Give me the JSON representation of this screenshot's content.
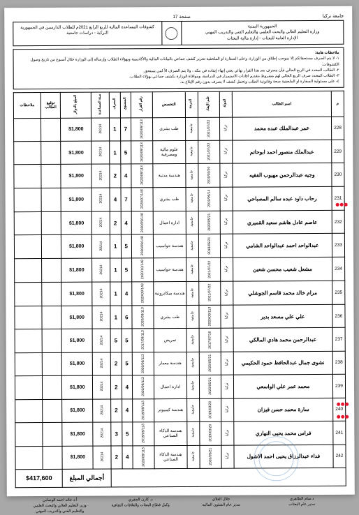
{
  "page_label_right": "جامعة تركيا",
  "page_label_center": "صفحة 17",
  "header": {
    "ministry_l1": "الجمهورية اليمنية",
    "ministry_l2": "وزارة التعليم العالي والبحث العلمي والتعليم الفني والتدريب المهني",
    "ministry_l3": "الإدارة العامة للبعثات - إدارة مالية البعثات",
    "title": "كشوفات المساعدة المالية للربع الرابع 2021م للطلاب الدارسين في الجمهورية التركية - دراسات جامعية"
  },
  "notes": {
    "heading": "ملاحظات هامة:",
    "n1": "١- لا يتم الصرف مستحقاتكم إلا بموجب إطلاق من الوزارة، وعلى السفارة او الملحقية تحرير كشف جماعي بالبيانات المالية والأكاديمية وبهؤلاء الطلاب وإرساله إلى الوزارة خلال أسبوع من تاريخ وصول الكشوفات.",
    "n2": "٢- الطالب المحدد في الربع الحالي فأن مصرف بعد هذا القرار نهائي يعني إنهاء إيفاده في بنكه ، ولا يتم الصرف الأ لمن يستحق.",
    "n3": "٣- الطلاب المحدد صرف الربع الحالي لهم مشروط بتقديم افادات الاستمرار في الدراسة، وموافاة الوزارة بكشف جماعي بهؤلاء الطلاب.",
    "n4": "٤- على مسئولية السفارة او الملحقية صحة وقانونية الطلب وتحمل كشف لا يصرف بدون رقم الإبلاغ به."
  },
  "columns": {
    "c0": "م",
    "c1": "اسم الطالب",
    "c2": "الدولة",
    "c3": "علم الإيفاد",
    "c4": "الدرجة",
    "c5": "التخصص",
    "c6": "رقم القرار",
    "c7": "المستوى",
    "c8": "المعرف",
    "c9": "سنة المساعدة",
    "c10": "المبلغ بالدولار",
    "c11": "توقيع الطالب",
    "c12": "ملاحظات"
  },
  "rows": [
    {
      "n": "228",
      "name": "عمر عبدالملك عبده محمد",
      "cty": "تركيا",
      "date": "2021/07/22",
      "deg": "جامعية",
      "spec": "طب بشري",
      "dno": "2020/09/113",
      "q1": "7",
      "q2": "1",
      "yr": "20214",
      "amt": "$1,800"
    },
    {
      "n": "229",
      "name": "عبدالملك منصور احمد ابوحاتم",
      "cty": "تركيا",
      "date": "2021/07/22",
      "deg": "جامعية",
      "spec": "علوم مالية ومصرفية",
      "dno": "2020/09/113",
      "q1": "5",
      "q2": "1",
      "yr": "20214",
      "amt": "$1,800"
    },
    {
      "n": "230",
      "name": "وجيه عبدالرحمن مهيوب الفقيه",
      "cty": "تركيا",
      "date": "2019/03/20",
      "deg": "جامعية",
      "spec": "هندسة مدنية",
      "dno": "2020/09/113",
      "q1": "4",
      "q2": "2",
      "yr": "20214",
      "amt": "$1,800"
    },
    {
      "n": "231",
      "name": "رحاب داود عبده سالم المصباحي",
      "cty": "تركيا",
      "date": "2019/05/14",
      "deg": "جامعية",
      "spec": "طب بشري",
      "dno": "2020/07/148",
      "q1": "7",
      "q2": "4",
      "yr": "20214",
      "amt": "$1,800"
    },
    {
      "n": "232",
      "name": "عاصم عادل هاشم سعيد القميري",
      "cty": "تركيا",
      "date": "2020/05/21",
      "deg": "جامعية",
      "spec": "ادارة اعمال",
      "dno": "2020/09/148",
      "q1": "4",
      "q2": "2",
      "yr": "20214",
      "amt": "$1,800"
    },
    {
      "n": "233",
      "name": "عبدالواحد احمد عبدالواحد الشامي",
      "cty": "تركيا",
      "date": "2019/05/21",
      "deg": "جامعية",
      "spec": "هندسة حواسيب",
      "dno": "2020/09/148",
      "q1": "5",
      "q2": "1",
      "yr": "20214",
      "amt": "$1,800"
    },
    {
      "n": "234",
      "name": "مشعل شعيب محسن شعين",
      "cty": "تركيا",
      "date": "2021/07/22",
      "deg": "جامعية",
      "spec": "هندسة حواسيب",
      "dno": "2020/10/148",
      "q1": "5",
      "q2": "1",
      "yr": "20214",
      "amt": "$1,800"
    },
    {
      "n": "235",
      "name": "مرام خالد محمد قاسم الجوشلي",
      "cty": "تركيا",
      "date": "2021/07/22",
      "deg": "جامعية",
      "spec": "هندسة ميكاترونية",
      "dno": "2020/09/148",
      "q1": "4",
      "q2": "1",
      "yr": "20214",
      "amt": "$1,800"
    },
    {
      "n": "236",
      "name": "علي علي مسعد بدير",
      "cty": "تركيا",
      "date": "2020/09/113",
      "deg": "جامعية",
      "spec": "طب بشري",
      "dno": "2020/09/113",
      "q1": "6",
      "q2": "1",
      "yr": "20214",
      "amt": "$1,800"
    },
    {
      "n": "237",
      "name": "عبدالرحمن محمد هادي المالكي",
      "cty": "تركيا",
      "date": "2017/07/18",
      "deg": "جامعية",
      "spec": "تمريض",
      "dno": "2017/09/113",
      "q1": "5",
      "q2": "5",
      "yr": "20214",
      "amt": "$1,800"
    },
    {
      "n": "238",
      "name": "نشوى جمال عبدالحافظ حمود الحكيمي",
      "cty": "تركيا",
      "date": "2020/05/21",
      "deg": "جامعية",
      "spec": "هندسة معمار",
      "dno": "2020/09/113",
      "q1": "5",
      "q2": "2",
      "yr": "20214",
      "amt": "$1,800"
    },
    {
      "n": "239",
      "name": "محمد عمر علي الواسعي",
      "cty": "تركيا",
      "date": "2020/05/21",
      "deg": "جامعية",
      "spec": "ادارة اعمال",
      "dno": "2020/09/113",
      "q1": "4",
      "q2": "2",
      "yr": "20214",
      "amt": "$1,800"
    },
    {
      "n": "240",
      "name": "سارة محمد حسن قيزان",
      "cty": "تركيا",
      "date": "2019/03/20",
      "deg": "جامعية",
      "spec": "هندسة كمبيوتر",
      "dno": "2019/09/113",
      "q1": "4",
      "q2": "2",
      "yr": "20214",
      "amt": "$1,800"
    },
    {
      "n": "241",
      "name": "فراس محمد يحيى النهاري",
      "cty": "تركيا",
      "date": "2019/03/20",
      "deg": "جامعية",
      "spec": "هندسة الذكاء الصناعي",
      "dno": "2019/09/113",
      "q1": "5",
      "q2": "3",
      "yr": "20214",
      "amt": "$1,800"
    },
    {
      "n": "242",
      "name": "فداء عبدالرزاق يحيى احمد الاشول",
      "cty": "تركيا",
      "date": "2020/05/21",
      "deg": "جامعية",
      "spec": "هندسة الذكاء الصناعي",
      "dno": "2020/09/113",
      "q1": "4",
      "q2": "2",
      "yr": "20214",
      "amt": "$1,800"
    }
  ],
  "total": {
    "label": "أجمالي المبلغ",
    "amount": "$417,600"
  },
  "signatures": {
    "s1": {
      "name": "د.سام الطاهري",
      "title": "مدير عام البعثات"
    },
    "s2": {
      "name": "جلال العلاي",
      "title": "مدير عام الشئون المالية"
    },
    "s3": {
      "name": "د. كارن الجفري",
      "title": "وكيل قطاع البعثات والعلاقات الثقافية"
    },
    "s4": {
      "name": "أ.د خالد احمد الوصابي",
      "title": "وزير التعليم العالي والبحث العلمي\nوالتعليم الفني والتدريب المهني"
    }
  }
}
